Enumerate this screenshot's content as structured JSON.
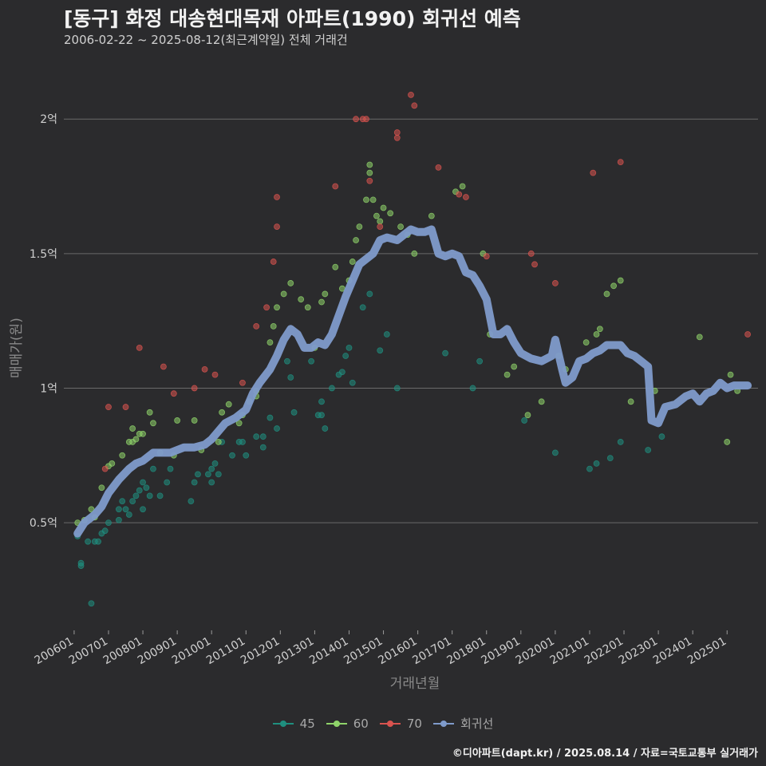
{
  "title": "[동구] 화정 대송현대목재 아파트(1990) 회귀선 예측",
  "subtitle": "2006-02-22 ~ 2025-08-12(최근계약일) 전체 거래건",
  "caption": "©디아파트(dapt.kr) / 2025.08.14 / 자료=국토교통부 실거래가",
  "colors": {
    "background": "#2b2b2d",
    "grid": "#6a6a6a",
    "s45": "#1f8f7f",
    "s60": "#8fd46a",
    "s70": "#d9534f",
    "regression": "#7f9bcb"
  },
  "chart_data": {
    "type": "scatter",
    "title": "[동구] 화정 대송현대목재 아파트(1990) 회귀선 예측",
    "xlabel": "거래년월",
    "ylabel": "매매가(원)",
    "xlim": [
      2005.7,
      2025.9
    ],
    "ylim": [
      0.1,
      2.22
    ],
    "yticks": [
      0.5,
      1,
      1.5,
      2
    ],
    "ytick_labels": [
      "0.5억",
      "1억",
      "1.5억",
      "2억"
    ],
    "xticks": [
      "200601",
      "200701",
      "200801",
      "200901",
      "201001",
      "201101",
      "201201",
      "201301",
      "201401",
      "201501",
      "201601",
      "201701",
      "201801",
      "201901",
      "202001",
      "202101",
      "202201",
      "202301",
      "202401",
      "202501"
    ],
    "grid": true,
    "legend_position": "bottom",
    "legend": [
      "45",
      "60",
      "70",
      "회귀선"
    ],
    "series": [
      {
        "name": "45",
        "points": [
          [
            2006.1,
            0.45
          ],
          [
            2006.2,
            0.35
          ],
          [
            2006.2,
            0.34
          ],
          [
            2006.4,
            0.43
          ],
          [
            2006.6,
            0.43
          ],
          [
            2006.7,
            0.43
          ],
          [
            2006.5,
            0.2
          ],
          [
            2006.8,
            0.46
          ],
          [
            2006.9,
            0.47
          ],
          [
            2007.0,
            0.5
          ],
          [
            2007.3,
            0.51
          ],
          [
            2007.3,
            0.55
          ],
          [
            2007.4,
            0.58
          ],
          [
            2007.5,
            0.55
          ],
          [
            2007.6,
            0.53
          ],
          [
            2007.7,
            0.58
          ],
          [
            2007.8,
            0.6
          ],
          [
            2007.9,
            0.62
          ],
          [
            2008.0,
            0.55
          ],
          [
            2008.0,
            0.65
          ],
          [
            2008.1,
            0.63
          ],
          [
            2008.2,
            0.6
          ],
          [
            2008.3,
            0.7
          ],
          [
            2008.5,
            0.6
          ],
          [
            2008.7,
            0.65
          ],
          [
            2008.8,
            0.7
          ],
          [
            2009.4,
            0.58
          ],
          [
            2009.5,
            0.65
          ],
          [
            2009.6,
            0.68
          ],
          [
            2009.9,
            0.68
          ],
          [
            2010.0,
            0.65
          ],
          [
            2010.0,
            0.7
          ],
          [
            2010.1,
            0.72
          ],
          [
            2010.2,
            0.68
          ],
          [
            2010.3,
            0.8
          ],
          [
            2010.6,
            0.75
          ],
          [
            2010.8,
            0.8
          ],
          [
            2010.9,
            0.8
          ],
          [
            2011.0,
            0.75
          ],
          [
            2011.3,
            0.82
          ],
          [
            2011.5,
            0.82
          ],
          [
            2011.5,
            0.78
          ],
          [
            2011.7,
            0.89
          ],
          [
            2011.9,
            0.85
          ],
          [
            2012.2,
            1.1
          ],
          [
            2012.3,
            1.04
          ],
          [
            2012.4,
            0.91
          ],
          [
            2012.9,
            1.1
          ],
          [
            2013.1,
            0.9
          ],
          [
            2013.2,
            0.95
          ],
          [
            2013.2,
            0.9
          ],
          [
            2013.3,
            0.85
          ],
          [
            2013.5,
            1.0
          ],
          [
            2013.7,
            1.05
          ],
          [
            2013.8,
            1.06
          ],
          [
            2013.9,
            1.12
          ],
          [
            2014.0,
            1.15
          ],
          [
            2014.1,
            1.02
          ],
          [
            2014.4,
            1.3
          ],
          [
            2014.6,
            1.35
          ],
          [
            2014.9,
            1.14
          ],
          [
            2015.1,
            1.2
          ],
          [
            2015.4,
            1.0
          ],
          [
            2016.8,
            1.13
          ],
          [
            2017.6,
            1.0
          ],
          [
            2017.8,
            1.1
          ],
          [
            2019.1,
            0.88
          ],
          [
            2020.0,
            0.76
          ],
          [
            2021.0,
            0.7
          ],
          [
            2021.2,
            0.72
          ],
          [
            2021.6,
            0.74
          ],
          [
            2021.9,
            0.8
          ],
          [
            2022.7,
            0.77
          ],
          [
            2023.1,
            0.82
          ]
        ]
      },
      {
        "name": "60",
        "points": [
          [
            2006.1,
            0.5
          ],
          [
            2006.3,
            0.51
          ],
          [
            2006.5,
            0.55
          ],
          [
            2006.6,
            0.52
          ],
          [
            2006.8,
            0.63
          ],
          [
            2007.0,
            0.71
          ],
          [
            2007.1,
            0.72
          ],
          [
            2007.4,
            0.75
          ],
          [
            2007.6,
            0.8
          ],
          [
            2007.7,
            0.85
          ],
          [
            2007.7,
            0.8
          ],
          [
            2007.8,
            0.81
          ],
          [
            2007.9,
            0.83
          ],
          [
            2008.0,
            0.83
          ],
          [
            2008.2,
            0.91
          ],
          [
            2008.3,
            0.87
          ],
          [
            2008.5,
            0.76
          ],
          [
            2008.9,
            0.75
          ],
          [
            2009.0,
            0.88
          ],
          [
            2009.5,
            0.88
          ],
          [
            2009.7,
            0.77
          ],
          [
            2010.2,
            0.8
          ],
          [
            2010.3,
            0.91
          ],
          [
            2010.5,
            0.94
          ],
          [
            2010.8,
            0.87
          ],
          [
            2010.9,
            0.9
          ],
          [
            2011.1,
            0.95
          ],
          [
            2011.3,
            0.99
          ],
          [
            2011.3,
            0.97
          ],
          [
            2011.7,
            1.17
          ],
          [
            2011.8,
            1.23
          ],
          [
            2011.9,
            1.3
          ],
          [
            2012.1,
            1.35
          ],
          [
            2012.3,
            1.39
          ],
          [
            2012.6,
            1.33
          ],
          [
            2012.8,
            1.3
          ],
          [
            2013.0,
            1.15
          ],
          [
            2013.2,
            1.32
          ],
          [
            2013.3,
            1.35
          ],
          [
            2013.6,
            1.45
          ],
          [
            2013.8,
            1.37
          ],
          [
            2014.0,
            1.4
          ],
          [
            2014.1,
            1.47
          ],
          [
            2014.2,
            1.55
          ],
          [
            2014.3,
            1.6
          ],
          [
            2014.5,
            1.7
          ],
          [
            2014.6,
            1.8
          ],
          [
            2014.6,
            1.83
          ],
          [
            2014.7,
            1.7
          ],
          [
            2014.8,
            1.64
          ],
          [
            2014.9,
            1.62
          ],
          [
            2015.0,
            1.67
          ],
          [
            2015.2,
            1.65
          ],
          [
            2015.5,
            1.6
          ],
          [
            2015.7,
            1.57
          ],
          [
            2015.9,
            1.5
          ],
          [
            2016.4,
            1.64
          ],
          [
            2017.1,
            1.73
          ],
          [
            2017.3,
            1.75
          ],
          [
            2017.9,
            1.5
          ],
          [
            2018.1,
            1.2
          ],
          [
            2018.6,
            1.05
          ],
          [
            2018.8,
            1.08
          ],
          [
            2019.2,
            0.9
          ],
          [
            2019.6,
            0.95
          ],
          [
            2020.1,
            1.12
          ],
          [
            2020.3,
            1.07
          ],
          [
            2020.9,
            1.17
          ],
          [
            2021.2,
            1.2
          ],
          [
            2021.3,
            1.22
          ],
          [
            2021.5,
            1.35
          ],
          [
            2021.7,
            1.38
          ],
          [
            2021.9,
            1.4
          ],
          [
            2022.2,
            0.95
          ],
          [
            2022.9,
            0.99
          ],
          [
            2024.2,
            1.19
          ],
          [
            2025.0,
            0.8
          ],
          [
            2025.1,
            1.05
          ],
          [
            2025.3,
            0.99
          ]
        ]
      },
      {
        "name": "70",
        "points": [
          [
            2006.9,
            0.7
          ],
          [
            2007.0,
            0.93
          ],
          [
            2007.5,
            0.93
          ],
          [
            2007.9,
            1.15
          ],
          [
            2008.6,
            1.08
          ],
          [
            2008.9,
            0.98
          ],
          [
            2009.5,
            1.0
          ],
          [
            2009.8,
            1.07
          ],
          [
            2010.1,
            1.05
          ],
          [
            2010.9,
            1.02
          ],
          [
            2011.3,
            1.23
          ],
          [
            2011.6,
            1.3
          ],
          [
            2011.8,
            1.47
          ],
          [
            2011.9,
            1.6
          ],
          [
            2011.9,
            1.71
          ],
          [
            2013.6,
            1.75
          ],
          [
            2014.2,
            2.0
          ],
          [
            2014.4,
            2.0
          ],
          [
            2014.5,
            2.0
          ],
          [
            2014.6,
            1.77
          ],
          [
            2014.9,
            1.6
          ],
          [
            2015.4,
            1.95
          ],
          [
            2015.4,
            1.93
          ],
          [
            2015.8,
            2.09
          ],
          [
            2015.9,
            2.05
          ],
          [
            2016.6,
            1.82
          ],
          [
            2017.2,
            1.72
          ],
          [
            2017.4,
            1.71
          ],
          [
            2018.0,
            1.49
          ],
          [
            2019.3,
            1.5
          ],
          [
            2019.4,
            1.46
          ],
          [
            2020.0,
            1.39
          ],
          [
            2021.1,
            1.8
          ],
          [
            2021.9,
            1.84
          ],
          [
            2025.6,
            1.2
          ]
        ]
      }
    ],
    "regression": [
      [
        2006.1,
        0.46
      ],
      [
        2006.3,
        0.5
      ],
      [
        2006.6,
        0.53
      ],
      [
        2006.8,
        0.56
      ],
      [
        2007.0,
        0.61
      ],
      [
        2007.3,
        0.66
      ],
      [
        2007.6,
        0.7
      ],
      [
        2007.8,
        0.72
      ],
      [
        2008.0,
        0.73
      ],
      [
        2008.3,
        0.76
      ],
      [
        2008.5,
        0.76
      ],
      [
        2008.8,
        0.76
      ],
      [
        2009.0,
        0.77
      ],
      [
        2009.2,
        0.78
      ],
      [
        2009.5,
        0.78
      ],
      [
        2009.8,
        0.79
      ],
      [
        2010.0,
        0.81
      ],
      [
        2010.2,
        0.84
      ],
      [
        2010.4,
        0.87
      ],
      [
        2010.7,
        0.89
      ],
      [
        2011.0,
        0.92
      ],
      [
        2011.2,
        0.98
      ],
      [
        2011.4,
        1.02
      ],
      [
        2011.7,
        1.07
      ],
      [
        2011.9,
        1.12
      ],
      [
        2012.1,
        1.18
      ],
      [
        2012.3,
        1.22
      ],
      [
        2012.5,
        1.2
      ],
      [
        2012.7,
        1.15
      ],
      [
        2012.9,
        1.15
      ],
      [
        2013.1,
        1.17
      ],
      [
        2013.3,
        1.16
      ],
      [
        2013.5,
        1.2
      ],
      [
        2013.7,
        1.27
      ],
      [
        2013.9,
        1.34
      ],
      [
        2014.1,
        1.4
      ],
      [
        2014.3,
        1.46
      ],
      [
        2014.5,
        1.48
      ],
      [
        2014.7,
        1.5
      ],
      [
        2014.9,
        1.55
      ],
      [
        2015.1,
        1.56
      ],
      [
        2015.4,
        1.55
      ],
      [
        2015.6,
        1.57
      ],
      [
        2015.8,
        1.59
      ],
      [
        2016.0,
        1.58
      ],
      [
        2016.2,
        1.58
      ],
      [
        2016.4,
        1.59
      ],
      [
        2016.6,
        1.5
      ],
      [
        2016.8,
        1.49
      ],
      [
        2017.0,
        1.5
      ],
      [
        2017.2,
        1.49
      ],
      [
        2017.4,
        1.43
      ],
      [
        2017.6,
        1.42
      ],
      [
        2017.8,
        1.38
      ],
      [
        2018.0,
        1.33
      ],
      [
        2018.2,
        1.2
      ],
      [
        2018.4,
        1.2
      ],
      [
        2018.6,
        1.22
      ],
      [
        2018.8,
        1.17
      ],
      [
        2019.0,
        1.13
      ],
      [
        2019.3,
        1.11
      ],
      [
        2019.6,
        1.1
      ],
      [
        2019.9,
        1.12
      ],
      [
        2020.0,
        1.18
      ],
      [
        2020.2,
        1.07
      ],
      [
        2020.3,
        1.02
      ],
      [
        2020.5,
        1.04
      ],
      [
        2020.7,
        1.1
      ],
      [
        2020.9,
        1.11
      ],
      [
        2021.1,
        1.13
      ],
      [
        2021.3,
        1.14
      ],
      [
        2021.5,
        1.16
      ],
      [
        2021.7,
        1.16
      ],
      [
        2021.9,
        1.16
      ],
      [
        2022.1,
        1.13
      ],
      [
        2022.3,
        1.12
      ],
      [
        2022.5,
        1.1
      ],
      [
        2022.7,
        1.08
      ],
      [
        2022.8,
        0.88
      ],
      [
        2023.0,
        0.87
      ],
      [
        2023.2,
        0.93
      ],
      [
        2023.5,
        0.94
      ],
      [
        2023.8,
        0.97
      ],
      [
        2024.0,
        0.98
      ],
      [
        2024.2,
        0.95
      ],
      [
        2024.4,
        0.98
      ],
      [
        2024.6,
        0.99
      ],
      [
        2024.8,
        1.02
      ],
      [
        2025.0,
        1.0
      ],
      [
        2025.2,
        1.01
      ],
      [
        2025.6,
        1.01
      ]
    ]
  }
}
